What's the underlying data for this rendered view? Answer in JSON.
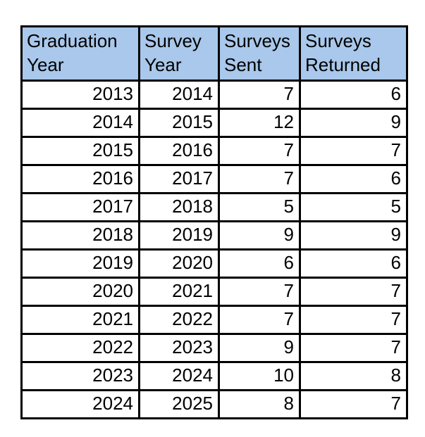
{
  "colors": {
    "header_bg": "#A9C8EB",
    "border": "#000000",
    "text": "#000000",
    "page_bg": "#FFFFFF"
  },
  "chart_data": {
    "type": "table",
    "title": "",
    "columns": [
      "Graduation Year",
      "Survey Year",
      "Surveys Sent",
      "Surveys Returned"
    ],
    "column_keys": [
      "graduation-year",
      "survey-year",
      "surveys-sent",
      "surveys-returned"
    ],
    "rows": [
      [
        2013,
        2014,
        7,
        6
      ],
      [
        2014,
        2015,
        12,
        9
      ],
      [
        2015,
        2016,
        7,
        7
      ],
      [
        2016,
        2017,
        7,
        6
      ],
      [
        2017,
        2018,
        5,
        5
      ],
      [
        2018,
        2019,
        9,
        9
      ],
      [
        2019,
        2020,
        6,
        6
      ],
      [
        2020,
        2021,
        7,
        7
      ],
      [
        2021,
        2022,
        7,
        7
      ],
      [
        2022,
        2023,
        9,
        7
      ],
      [
        2023,
        2024,
        10,
        8
      ],
      [
        2024,
        2025,
        8,
        7
      ]
    ]
  }
}
